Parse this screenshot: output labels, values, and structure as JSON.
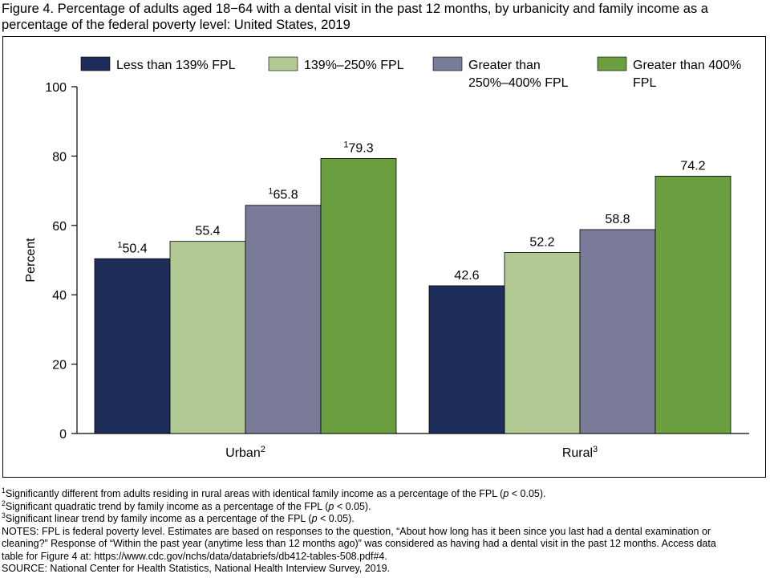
{
  "figure": {
    "title": "Figure 4. Percentage of adults aged 18−64 with a dental visit in the past 12 months, by urbanicity and family income as a percentage of the federal poverty level: United States, 2019"
  },
  "chart_data": {
    "type": "bar",
    "title": "Figure 4. Percentage of adults aged 18−64 with a dental visit in the past 12 months, by urbanicity and family income as a percentage of the federal poverty level: United States, 2019",
    "xlabel": "",
    "ylabel": "Percent",
    "ylim": [
      0,
      100
    ],
    "yticks": [
      0,
      20,
      40,
      60,
      80,
      100
    ],
    "grid": false,
    "legend_position": "top",
    "categories": [
      "Urban",
      "Rural"
    ],
    "category_superscripts": [
      "2",
      "3"
    ],
    "series": [
      {
        "name": "Less than 139% FPL",
        "legend_lines": [
          "Less than 139% FPL"
        ],
        "color": "#1f2d5a",
        "values": [
          50.4,
          42.6
        ],
        "labels": [
          "50.4",
          "42.6"
        ],
        "label_superscripts": [
          "1",
          ""
        ]
      },
      {
        "name": "139%–250% FPL",
        "legend_lines": [
          "139%–250% FPL"
        ],
        "color": "#b2c994",
        "values": [
          55.4,
          52.2
        ],
        "labels": [
          "55.4",
          "52.2"
        ],
        "label_superscripts": [
          "",
          ""
        ]
      },
      {
        "name": "Greater than 250%–400% FPL",
        "legend_lines": [
          "Greater than",
          "250%–400% FPL"
        ],
        "color": "#7a7a99",
        "values": [
          65.8,
          58.8
        ],
        "labels": [
          "65.8",
          "58.8"
        ],
        "label_superscripts": [
          "1",
          ""
        ]
      },
      {
        "name": "Greater than 400% FPL",
        "legend_lines": [
          "Greater than 400%",
          "FPL"
        ],
        "color": "#6a9e3e",
        "values": [
          79.3,
          74.2
        ],
        "labels": [
          "79.3",
          "74.2"
        ],
        "label_superscripts": [
          "1",
          ""
        ]
      }
    ]
  },
  "footnotes": {
    "note1_sup": "1",
    "note1_text": "Significantly different from adults residing in rural areas with identical family income as a percentage of the FPL (",
    "note1_p": "p",
    "note1_end": " < 0.05).",
    "note2_sup": "2",
    "note2_text": "Significant quadratic trend by family income as a percentage of the FPL (",
    "note2_p": "p",
    "note2_end": " < 0.05).",
    "note3_sup": "3",
    "note3_text": "Significant linear trend by family income as a percentage of the FPL (",
    "note3_p": "p",
    "note3_end": " < 0.05).",
    "notes_line1": "NOTES: FPL is federal poverty level. Estimates are based on responses to the question, “About how long has it been since you last had a dental examination or",
    "notes_line2": "cleaning?” Response of “Within the past year (anytime less than 12 months ago)” was considered as having had a dental visit in the past 12 months. Access data",
    "notes_line3": "table for Figure 4 at: https://www.cdc.gov/nchs/data/databriefs/db412-tables-508.pdf#4.",
    "source": "SOURCE: National Center for Health Statistics, National Health Interview Survey, 2019."
  }
}
